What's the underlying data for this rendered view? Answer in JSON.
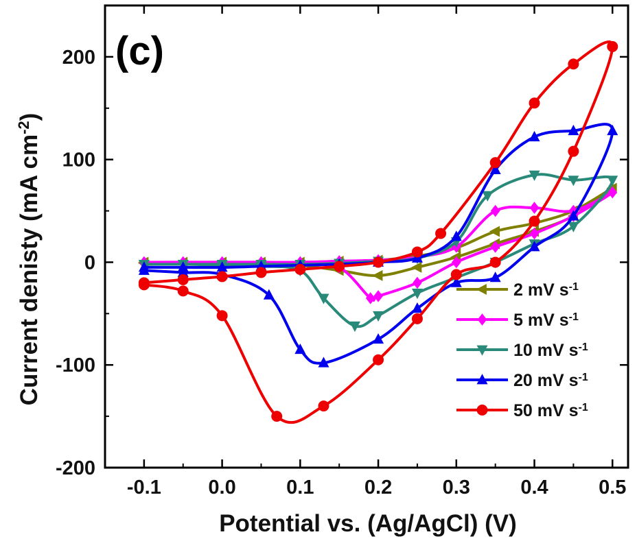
{
  "chart_data": {
    "type": "line",
    "panel_label": "(c)",
    "xlabel": "Potential vs. (Ag/AgCl) (V)",
    "ylabel": "Current denisty (mA cm",
    "ylabel_sup": "-2",
    "ylabel_close": ")",
    "xlim": [
      -0.15,
      0.52
    ],
    "ylim": [
      -200,
      250
    ],
    "xticks": [
      -0.1,
      0.0,
      0.1,
      0.2,
      0.3,
      0.4,
      0.5
    ],
    "xtick_labels": [
      "-0.1",
      "0.0",
      "0.1",
      "0.2",
      "0.3",
      "0.4",
      "0.5"
    ],
    "yticks": [
      -200,
      -100,
      0,
      100,
      200
    ],
    "ytick_labels": [
      "-200",
      "-100",
      "0",
      "100",
      "200"
    ],
    "legend_position": "lower-right",
    "series": [
      {
        "name": "2 mV s",
        "unit_sup": "-1",
        "color": "#808000",
        "marker": "triangle-left",
        "x": [
          -0.1,
          -0.05,
          0.0,
          0.05,
          0.1,
          0.15,
          0.2,
          0.25,
          0.3,
          0.35,
          0.4,
          0.45,
          0.5,
          0.45,
          0.4,
          0.35,
          0.3,
          0.25,
          0.2,
          0.15,
          0.1,
          0.05,
          0.0,
          -0.05,
          -0.1
        ],
        "y": [
          0,
          0,
          0,
          0,
          0,
          1,
          2,
          6,
          14,
          30,
          38,
          50,
          72,
          45,
          30,
          18,
          5,
          -5,
          -13,
          -8,
          -3,
          -2,
          -1,
          -1,
          -1
        ]
      },
      {
        "name": "5 mV s",
        "unit_sup": "-1",
        "color": "#ff00ff",
        "marker": "diamond",
        "x": [
          -0.1,
          -0.05,
          0.0,
          0.05,
          0.1,
          0.15,
          0.2,
          0.25,
          0.3,
          0.35,
          0.4,
          0.45,
          0.5,
          0.45,
          0.4,
          0.35,
          0.3,
          0.25,
          0.2,
          0.19,
          0.15,
          0.1,
          0.05,
          0.0,
          -0.05,
          -0.1
        ],
        "y": [
          0,
          0,
          0,
          0,
          0,
          1,
          2,
          5,
          15,
          50,
          53,
          50,
          68,
          45,
          28,
          15,
          0,
          -20,
          -33,
          -35,
          -5,
          -2,
          -1,
          -1,
          -1,
          -1
        ]
      },
      {
        "name": "10 mV s",
        "unit_sup": "-1",
        "color": "#2a8a7a",
        "marker": "triangle-down",
        "x": [
          -0.1,
          -0.05,
          0.0,
          0.05,
          0.1,
          0.15,
          0.2,
          0.25,
          0.3,
          0.34,
          0.4,
          0.45,
          0.5,
          0.45,
          0.4,
          0.35,
          0.3,
          0.25,
          0.2,
          0.17,
          0.13,
          0.1,
          0.05,
          0.0,
          -0.05,
          -0.1
        ],
        "y": [
          -2,
          -2,
          -2,
          -2,
          -2,
          -1,
          1,
          4,
          20,
          65,
          85,
          80,
          80,
          35,
          18,
          0,
          -15,
          -30,
          -52,
          -62,
          -35,
          -8,
          -4,
          -3,
          -2,
          -2
        ]
      },
      {
        "name": "20 mV s",
        "unit_sup": "-1",
        "color": "#0000ee",
        "marker": "triangle-up",
        "x": [
          -0.1,
          -0.05,
          0.0,
          0.05,
          0.1,
          0.15,
          0.2,
          0.25,
          0.3,
          0.35,
          0.4,
          0.45,
          0.5,
          0.45,
          0.4,
          0.35,
          0.3,
          0.25,
          0.2,
          0.13,
          0.1,
          0.06,
          0.0,
          -0.05,
          -0.1
        ],
        "y": [
          -5,
          -5,
          -5,
          -4,
          -3,
          -2,
          0,
          4,
          25,
          90,
          122,
          128,
          128,
          45,
          15,
          -15,
          -20,
          -45,
          -75,
          -98,
          -85,
          -32,
          -12,
          -10,
          -8
        ]
      },
      {
        "name": "50 mV s",
        "unit_sup": "-1",
        "color": "#ee0000",
        "marker": "circle",
        "x": [
          -0.1,
          -0.05,
          0.0,
          0.05,
          0.1,
          0.15,
          0.2,
          0.25,
          0.28,
          0.35,
          0.4,
          0.45,
          0.5,
          0.45,
          0.4,
          0.35,
          0.3,
          0.25,
          0.2,
          0.13,
          0.07,
          0.0,
          -0.05,
          -0.1
        ],
        "y": [
          -20,
          -17,
          -14,
          -10,
          -7,
          -4,
          0,
          10,
          28,
          97,
          155,
          193,
          210,
          108,
          40,
          0,
          -12,
          -55,
          -95,
          -140,
          -150,
          -52,
          -28,
          -22
        ]
      }
    ]
  }
}
